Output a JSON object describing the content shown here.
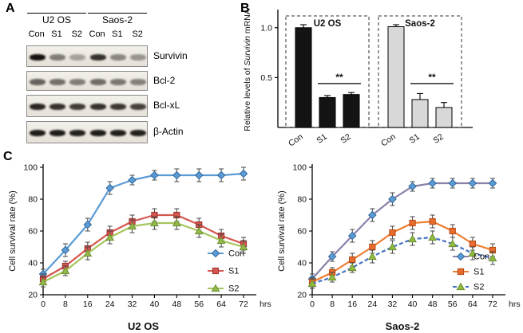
{
  "panelA": {
    "label": "A",
    "groups": [
      {
        "name": "U2 OS"
      },
      {
        "name": "Saos-2"
      }
    ],
    "lanes": [
      "Con",
      "S1",
      "S2",
      "Con",
      "S1",
      "S2"
    ],
    "rows": [
      {
        "label": "Survivin",
        "intensities": [
          1.0,
          0.5,
          0.32,
          0.85,
          0.45,
          0.38
        ]
      },
      {
        "label": "Bcl-2",
        "intensities": [
          0.62,
          0.56,
          0.5,
          0.58,
          0.53,
          0.48
        ]
      },
      {
        "label": "Bcl-xL",
        "intensities": [
          0.9,
          0.85,
          0.8,
          0.85,
          0.82,
          0.78
        ]
      },
      {
        "label": "β-Actin",
        "intensities": [
          0.95,
          0.95,
          0.93,
          0.95,
          0.94,
          0.93
        ]
      }
    ]
  },
  "panelB": {
    "label": "B"
  },
  "panelC": {
    "label": "C"
  },
  "chart_data": [
    {
      "type": "bar",
      "panel": "B",
      "ylabel_parts": [
        "Relative levels of ",
        "Survivin",
        " mRNA"
      ],
      "ylim": [
        0,
        1.15
      ],
      "yticks": [
        0.5,
        1.0
      ],
      "grid": false,
      "groups": [
        {
          "name": "U2 OS",
          "bar_color": "#141414",
          "categories": [
            "Con",
            "S1",
            "S2"
          ],
          "values": [
            1.0,
            0.3,
            0.33
          ],
          "errors": [
            0.03,
            0.02,
            0.02
          ],
          "significance": "**"
        },
        {
          "name": "Saos-2",
          "bar_color": "#d8d8d8",
          "categories": [
            "Con",
            "S1",
            "S2"
          ],
          "values": [
            1.01,
            0.28,
            0.2
          ],
          "errors": [
            0.02,
            0.06,
            0.05
          ],
          "significance": "**"
        }
      ]
    },
    {
      "type": "line",
      "title": "U2 OS",
      "ylabel": "Cell survival rate (%)",
      "x_unit": "hrs",
      "x": [
        0,
        8,
        16,
        24,
        32,
        40,
        48,
        56,
        64,
        72
      ],
      "ylim": [
        20,
        100
      ],
      "yticks": [
        20,
        40,
        60,
        80,
        100
      ],
      "legend_pos": "middle-right",
      "series": [
        {
          "name": "Con",
          "marker": "diamond",
          "line_color": "#5b9bd5",
          "marker_color": "#5b9bd5",
          "marker_stroke": "#31679b",
          "dash": "",
          "values": [
            33,
            48,
            64,
            87,
            92,
            95,
            95,
            95,
            95,
            96
          ],
          "errors": [
            3,
            4,
            4,
            4,
            3,
            3,
            4,
            4,
            4,
            4
          ]
        },
        {
          "name": "S1",
          "marker": "square",
          "line_color": "#d4564e",
          "marker_color": "#d4564e",
          "marker_stroke": "#993333",
          "dash": "",
          "values": [
            30,
            38,
            49,
            59,
            66,
            70,
            70,
            64,
            57,
            52
          ],
          "errors": [
            3,
            3,
            4,
            4,
            4,
            4,
            4,
            4,
            4,
            4
          ]
        },
        {
          "name": "S2",
          "marker": "triangle",
          "line_color": "#a4c65c",
          "marker_color": "#93b94a",
          "marker_stroke": "#6e8f33",
          "dash": "",
          "values": [
            28,
            35,
            46,
            56,
            63,
            65,
            65,
            60,
            54,
            50
          ],
          "errors": [
            3,
            3,
            4,
            4,
            4,
            4,
            4,
            4,
            4,
            4
          ]
        }
      ]
    },
    {
      "type": "line",
      "title": "Saos-2",
      "ylabel": "Cell survival rate (%)",
      "x_unit": "hrs",
      "x": [
        0,
        8,
        16,
        24,
        32,
        40,
        48,
        56,
        64,
        72
      ],
      "ylim": [
        20,
        100
      ],
      "yticks": [
        20,
        40,
        60,
        80,
        100
      ],
      "legend_pos": "lower-right",
      "series": [
        {
          "name": "Con",
          "marker": "diamond",
          "line_color": "#8b80a8",
          "marker_color": "#5b9bd5",
          "marker_stroke": "#31679b",
          "dash": "",
          "values": [
            30,
            44,
            57,
            70,
            80,
            88,
            90,
            90,
            90,
            90
          ],
          "errors": [
            3,
            3,
            4,
            4,
            4,
            3,
            3,
            3,
            3,
            3
          ]
        },
        {
          "name": "S1",
          "marker": "square",
          "line_color": "#ed7d31",
          "marker_color": "#e96b2e",
          "marker_stroke": "#b34a14",
          "dash": "",
          "values": [
            28,
            34,
            42,
            50,
            59,
            65,
            66,
            60,
            52,
            48
          ],
          "errors": [
            3,
            3,
            4,
            4,
            4,
            4,
            4,
            4,
            4,
            4
          ]
        },
        {
          "name": "S2",
          "marker": "triangle",
          "line_color": "#4472c4",
          "marker_color": "#8fbc3f",
          "marker_stroke": "#6e8f33",
          "dash": "5,3",
          "values": [
            27,
            31,
            37,
            44,
            50,
            55,
            56,
            52,
            46,
            43
          ],
          "errors": [
            3,
            3,
            3,
            4,
            4,
            4,
            4,
            4,
            4,
            4
          ]
        }
      ]
    }
  ]
}
